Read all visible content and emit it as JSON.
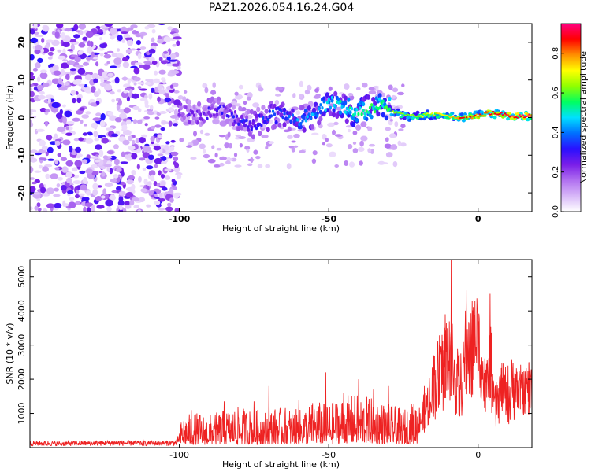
{
  "figure": {
    "title": "PAZ1.2026.054.16.24.G04"
  },
  "chart_data": [
    {
      "type": "heatmap",
      "xlabel": "Height of straight line (km)",
      "ylabel": "Frequency (Hz)",
      "xlim": [
        -150,
        18
      ],
      "ylim": [
        -25,
        25
      ],
      "xticks": [
        -100,
        -50,
        0
      ],
      "yticks": [
        -20,
        -10,
        0,
        10,
        20
      ],
      "regions": [
        {
          "name": "diffuse-noise",
          "x_range": [
            -150,
            -100
          ],
          "y_range": [
            -25,
            25
          ],
          "level": 0.2
        },
        {
          "name": "scattered-halo",
          "x_range": [
            -100,
            -25
          ],
          "y_range": [
            -13,
            9
          ],
          "level": 0.12
        },
        {
          "name": "signal-core",
          "x_range": [
            -100,
            18
          ],
          "y_center_from": 0.5,
          "y_center_mid": 1.5,
          "y_center_to": 0.2,
          "level_from": 0.22,
          "level_to": 0.95
        }
      ],
      "colorbar": {
        "label": "Normalized spectral amplitude",
        "range": [
          0,
          0.95
        ],
        "ticks": [
          0.0,
          0.2,
          0.4,
          0.6,
          0.8
        ],
        "colors": [
          "#ffffff",
          "#d8b8f8",
          "#b070f0",
          "#7a1ee8",
          "#2a10ff",
          "#0070ff",
          "#00e0ff",
          "#00ff60",
          "#90ff00",
          "#ffff00",
          "#ff9000",
          "#ff0000",
          "#ff0080"
        ]
      }
    },
    {
      "type": "line",
      "xlabel": "Height of straight line (km)",
      "ylabel": "SNR (10 * v/v)",
      "xlim": [
        -150,
        18
      ],
      "ylim": [
        0,
        5500
      ],
      "xticks": [
        -100,
        -50,
        0
      ],
      "yticks": [
        1000,
        2000,
        3000,
        4000,
        5000
      ],
      "series": [
        {
          "name": "SNR",
          "color": "#ee2222",
          "x": [
            -150,
            -140,
            -130,
            -120,
            -110,
            -101,
            -99,
            -95,
            -90,
            -85,
            -80,
            -75,
            -70,
            -65,
            -60,
            -55,
            -50,
            -45,
            -40,
            -35,
            -30,
            -25,
            -20,
            -17,
            -15,
            -13,
            -11,
            -10,
            -9,
            -8,
            -7,
            -6,
            -5,
            -4,
            -3,
            -2,
            -1,
            0,
            1,
            2,
            3,
            4,
            5,
            6,
            8,
            10,
            12,
            14,
            16,
            18
          ],
          "values": [
            140,
            130,
            140,
            150,
            140,
            150,
            500,
            560,
            520,
            600,
            650,
            600,
            620,
            650,
            600,
            750,
            700,
            820,
            850,
            780,
            700,
            600,
            800,
            1300,
            2000,
            2500,
            2900,
            3100,
            3000,
            2400,
            2100,
            1900,
            2300,
            3400,
            3000,
            3100,
            3600,
            3400,
            2900,
            1900,
            2000,
            2900,
            1600,
            1400,
            2000,
            1500,
            2000,
            1800,
            1900,
            2000
          ],
          "peaks": [
            {
              "x": -96,
              "y": 1100
            },
            {
              "x": -85,
              "y": 1350
            },
            {
              "x": -75,
              "y": 1350
            },
            {
              "x": -70,
              "y": 1800
            },
            {
              "x": -60,
              "y": 1400
            },
            {
              "x": -51,
              "y": 2200
            },
            {
              "x": -45,
              "y": 1600
            },
            {
              "x": -40,
              "y": 2000
            },
            {
              "x": -35,
              "y": 1700
            },
            {
              "x": -30,
              "y": 1800
            },
            {
              "x": -22,
              "y": 1200
            },
            {
              "x": -18,
              "y": 1800
            },
            {
              "x": -15,
              "y": 2700
            },
            {
              "x": -13,
              "y": 3000
            },
            {
              "x": -11,
              "y": 3900
            },
            {
              "x": -9,
              "y": 5500
            },
            {
              "x": -4,
              "y": 4600
            },
            {
              "x": -2,
              "y": 4300
            },
            {
              "x": 4,
              "y": 4500
            },
            {
              "x": 10,
              "y": 2400
            },
            {
              "x": 17,
              "y": 2500
            }
          ]
        }
      ]
    }
  ]
}
